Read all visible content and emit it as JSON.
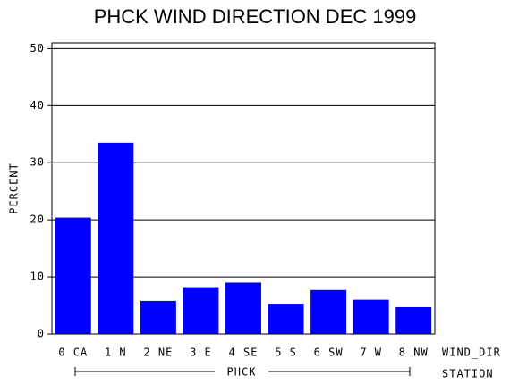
{
  "chart_data": {
    "type": "bar",
    "title": "PHCK WIND DIRECTION DEC 1999",
    "y_label": "PERCENT",
    "x_label": "WIND_DIR",
    "group_label": "PHCK",
    "group_axis_label": "STATION",
    "categories": [
      "0 CA",
      "1 N",
      "2 NE",
      "3 E",
      "4 SE",
      "5 S",
      "6 SW",
      "7 W",
      "8 NW"
    ],
    "values": [
      20.4,
      33.5,
      5.8,
      8.2,
      9.0,
      5.3,
      7.7,
      6.0,
      4.7
    ],
    "color": "#0000ff",
    "ylim": [
      0,
      51
    ],
    "yticks": [
      0,
      10,
      20,
      30,
      40,
      50
    ],
    "grid": true
  }
}
